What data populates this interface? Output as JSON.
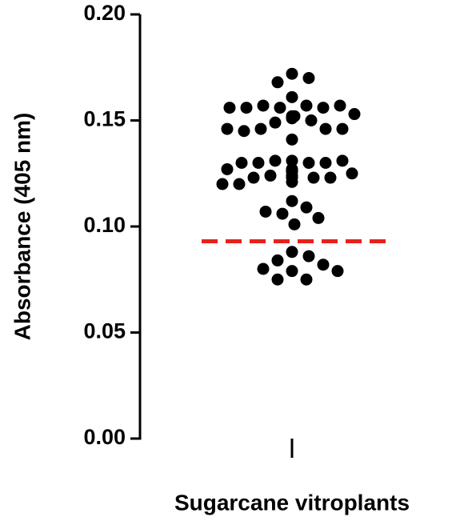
{
  "chart_data": {
    "type": "scatter",
    "y_label": "Absorbance (405 nm)",
    "categories": [
      "Sugarcane vitroplants"
    ],
    "color": "#000000",
    "values": [
      0.172,
      0.17,
      0.168,
      0.161,
      0.157,
      0.156,
      0.157,
      0.156,
      0.156,
      0.157,
      0.156,
      0.153,
      0.152,
      0.151,
      0.152,
      0.15,
      0.149,
      0.146,
      0.146,
      0.145,
      0.146,
      0.146,
      0.141,
      0.131,
      0.13,
      0.131,
      0.13,
      0.13,
      0.131,
      0.13,
      0.125,
      0.127,
      0.126,
      0.127,
      0.126,
      0.126,
      0.126,
      0.124,
      0.123,
      0.123,
      0.123,
      0.123,
      0.124,
      0.12,
      0.121,
      0.12,
      0.112,
      0.109,
      0.106,
      0.107,
      0.101,
      0.104,
      0.088,
      0.086,
      0.084,
      0.082,
      0.079,
      0.08,
      0.079,
      0.075,
      0.075
    ],
    "reference_line": {
      "value": 0.093,
      "color": "#e8201a",
      "dashed": true
    },
    "ylim": [
      0,
      0.2
    ],
    "yticks": [
      {
        "value": 0,
        "label": "0.00"
      },
      0.05,
      {
        "value": 0.1,
        "label": "0.10"
      },
      0.15,
      {
        "value": 0.2,
        "label": "0.20"
      }
    ]
  }
}
